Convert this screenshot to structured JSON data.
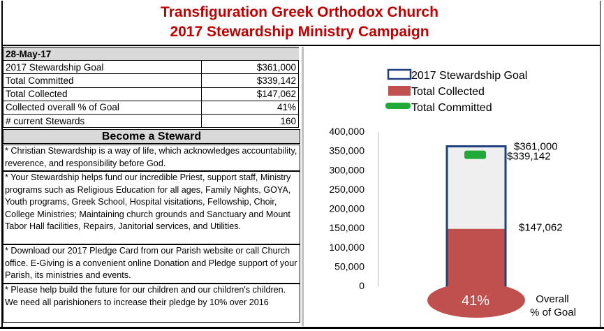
{
  "header": {
    "line1": "Transfiguration Greek Orthodox Church",
    "line2": "2017 Stewardship Ministry Campaign"
  },
  "stats": {
    "date": "28-May-17",
    "rows": [
      {
        "label": "2017 Stewardship Goal",
        "value": "$361,000"
      },
      {
        "label": "Total Committed",
        "value": "$339,142"
      },
      {
        "label": "Total Collected",
        "value": "$147,062"
      },
      {
        "label": "Collected overall % of Goal",
        "value": "41%"
      },
      {
        "label": "# current Stewards",
        "value": "160"
      }
    ]
  },
  "become": {
    "heading": "Become a Steward",
    "paragraphs": [
      "* Christian Stewardship is a way of life, which acknowledges accountability, reverence, and responsibility before God.",
      "* Your Stewardship helps fund our incredible Priest, support staff, Ministry programs such as Religious Education for all ages, Family Nights, GOYA, Youth programs, Greek School, Hospital visitations, Fellowship, Choir, College Ministries; Maintaining church grounds and Sanctuary and Mount Tabor Hall facilities, Repairs, Janitorial services, and Utilities.",
      "* Download our 2017 Pledge Card from our Parish website or call Church office.  E-Giving is a convenient online Donation and Pledge support of your Parish, its ministries and events.",
      "* Please help build the future for our children and our children's children. We need all parishioners to increase their pledge by 10% over 2016"
    ]
  },
  "chart_data": {
    "type": "bar",
    "series": [
      {
        "name": "2017 Stewardship Goal",
        "value": 361000,
        "label": "$361,000",
        "color": "#1f3f7f"
      },
      {
        "name": "Total Collected",
        "value": 147062,
        "label": "$147,062",
        "color": "#c0504d"
      },
      {
        "name": "Total Committed",
        "value": 339142,
        "label": "$339,142",
        "color": "#1faa3a"
      }
    ],
    "ylim": [
      0,
      400000
    ],
    "yticks": [
      "0",
      "50,000",
      "100,000",
      "150,000",
      "200,000",
      "250,000",
      "300,000",
      "350,000",
      "400,000"
    ],
    "percent_badge": "41%",
    "percent_caption": [
      "Overall",
      "% of Goal"
    ],
    "legend_position": "top",
    "bar_fill": "#efefef"
  }
}
